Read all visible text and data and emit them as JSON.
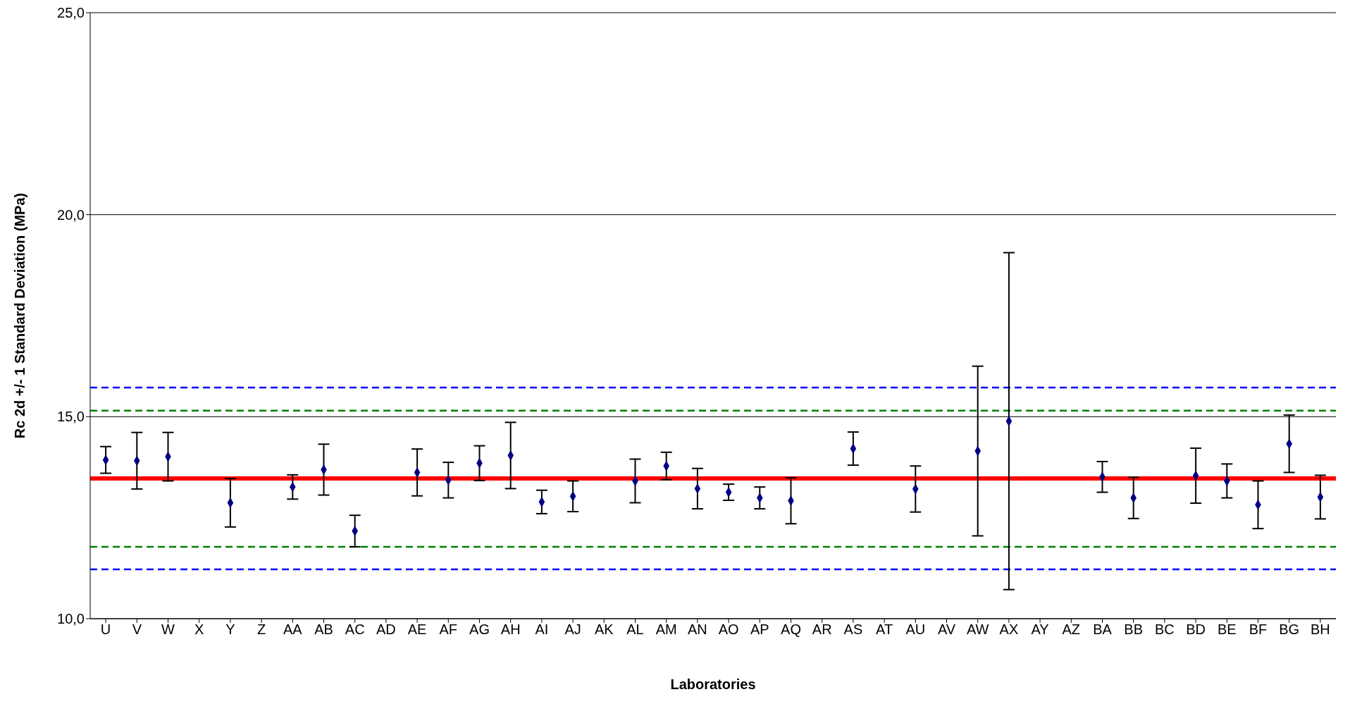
{
  "chart_data": {
    "type": "scatter",
    "xlabel": "Laboratories",
    "ylabel": "Rc 2d +/- 1 Standard Deviation (MPa)",
    "categories": [
      "U",
      "V",
      "W",
      "X",
      "Y",
      "Z",
      "AA",
      "AB",
      "AC",
      "AD",
      "AE",
      "AF",
      "AG",
      "AH",
      "AI",
      "AJ",
      "AK",
      "AL",
      "AM",
      "AN",
      "AO",
      "AP",
      "AQ",
      "AR",
      "AS",
      "AT",
      "AU",
      "AV",
      "AW",
      "AX",
      "AY",
      "AZ",
      "BA",
      "BB",
      "BC",
      "BD",
      "BE",
      "BF",
      "BG",
      "BH"
    ],
    "series": [
      {
        "color": "#000080",
        "values": [
          13.93,
          13.91,
          14.01,
          null,
          12.87,
          null,
          13.26,
          13.69,
          12.17,
          null,
          13.62,
          13.43,
          13.85,
          14.04,
          12.89,
          13.03,
          null,
          13.41,
          13.78,
          13.22,
          13.13,
          12.99,
          12.92,
          null,
          14.21,
          null,
          13.21,
          null,
          14.15,
          14.89,
          null,
          null,
          13.51,
          12.99,
          null,
          13.54,
          13.41,
          12.82,
          14.33,
          13.01
        ],
        "errors": [
          0.33,
          0.7,
          0.6,
          null,
          0.6,
          null,
          0.3,
          0.63,
          0.39,
          null,
          0.58,
          0.44,
          0.43,
          0.82,
          0.29,
          0.38,
          null,
          0.54,
          0.34,
          0.5,
          0.2,
          0.27,
          0.57,
          null,
          0.41,
          null,
          0.57,
          null,
          2.1,
          4.17,
          null,
          null,
          0.38,
          0.51,
          null,
          0.68,
          0.42,
          0.59,
          0.71,
          0.54
        ]
      }
    ],
    "ylim": [
      10,
      25
    ],
    "yticks": [
      {
        "value": 10,
        "label": "10,0"
      },
      {
        "value": 15,
        "label": "15,0"
      },
      {
        "value": 20,
        "label": "20,0"
      },
      {
        "value": 25,
        "label": "25,0"
      }
    ],
    "grid": "y",
    "marker": "diamond",
    "ref_lines": [
      {
        "axis": "y",
        "value": 13.47,
        "color": "#ff0000",
        "line_style": "solid"
      },
      {
        "axis": "y",
        "value": 15.15,
        "color": "#008000",
        "line_style": "dashed"
      },
      {
        "axis": "y",
        "value": 11.78,
        "color": "#008000",
        "line_style": "dashed"
      },
      {
        "axis": "y",
        "value": 15.72,
        "color": "#0000ff",
        "line_style": "dashed"
      },
      {
        "axis": "y",
        "value": 11.22,
        "color": "#0000ff",
        "line_style": "dashed"
      }
    ]
  }
}
